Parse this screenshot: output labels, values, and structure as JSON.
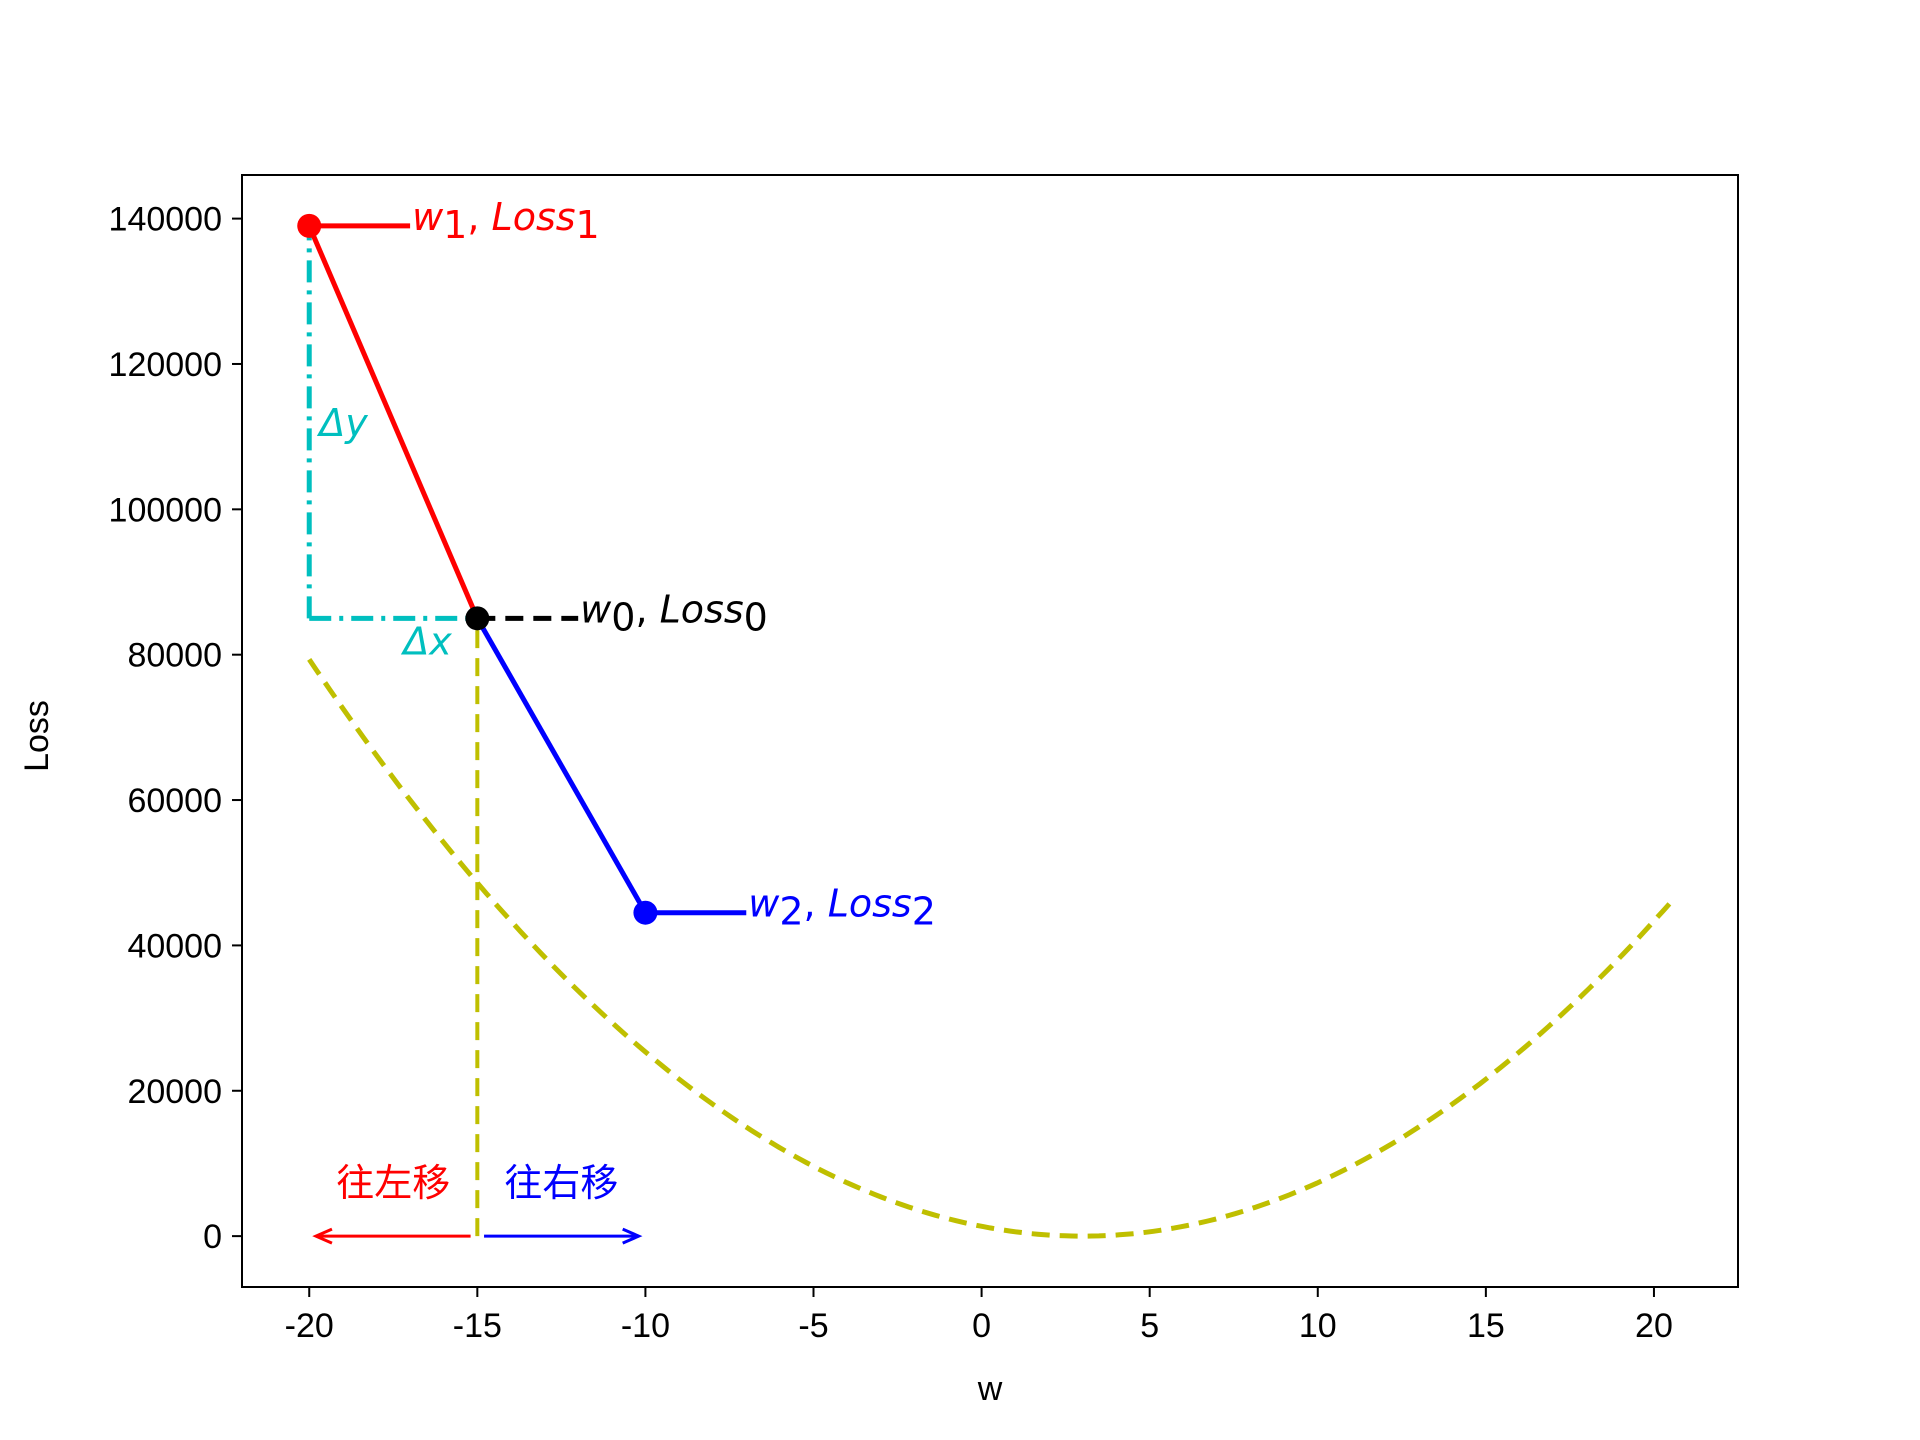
{
  "chart_data": {
    "type": "line",
    "xlabel": "w",
    "ylabel": "Loss",
    "xlim": [
      -22,
      22.5
    ],
    "ylim": [
      -7000,
      146000
    ],
    "xticks": [
      -20,
      -15,
      -10,
      -5,
      0,
      5,
      10,
      15,
      20
    ],
    "xtick_labels": [
      "-20",
      "-15",
      "-10",
      "-5",
      "0",
      "5",
      "10",
      "15",
      "20"
    ],
    "yticks": [
      0,
      20000,
      40000,
      60000,
      80000,
      100000,
      120000,
      140000
    ],
    "ytick_labels": [
      "0",
      "20000",
      "40000",
      "60000",
      "80000",
      "100000",
      "120000",
      "140000"
    ],
    "curve": {
      "style": "dashed",
      "color": "#bfbf00",
      "formula": "Loss = 150*(w-3)^2",
      "w_range": [
        -20,
        20.5
      ]
    },
    "points": [
      {
        "id": "w0",
        "w": -15,
        "loss": 85000,
        "color": "#000000",
        "sub": "0"
      },
      {
        "id": "w1",
        "w": -20,
        "loss": 139000,
        "color": "#ff0000",
        "sub": "1"
      },
      {
        "id": "w2",
        "w": -10,
        "loss": 44500,
        "color": "#0000ff",
        "sub": "2"
      }
    ],
    "point_leader_end_w": {
      "w0": -12,
      "w1": -17,
      "w2": -7
    },
    "point_labels": {
      "w0": {
        "w": "w",
        "loss": "Loss"
      },
      "w1": {
        "w": "w",
        "loss": "Loss"
      },
      "w2": {
        "w": "w",
        "loss": "Loss"
      }
    },
    "secant_lines": [
      {
        "from": "w1",
        "to": "w0",
        "color": "#ff0000"
      },
      {
        "from": "w0",
        "to": "w2",
        "color": "#0000ff"
      }
    ],
    "delta_lines": {
      "color": "#00bfbf",
      "vertical": {
        "w": -20,
        "loss_from": 85000,
        "loss_to": 139000
      },
      "horizontal": {
        "w_from": -20,
        "w_to": -15,
        "loss": 85000
      },
      "dy_label": "Δy",
      "dx_label": "Δx"
    },
    "vertical_marker": {
      "w": -15,
      "loss_from": 0,
      "loss_to": 85000,
      "color": "#bfbf00"
    },
    "arrows": [
      {
        "id": "left",
        "from_w": -15.2,
        "to_w": -19.8,
        "loss": 0,
        "color": "#ff0000",
        "text": "往左移"
      },
      {
        "id": "right",
        "from_w": -14.8,
        "to_w": -10.2,
        "loss": 0,
        "color": "#0000ff",
        "text": "往右移"
      }
    ]
  }
}
